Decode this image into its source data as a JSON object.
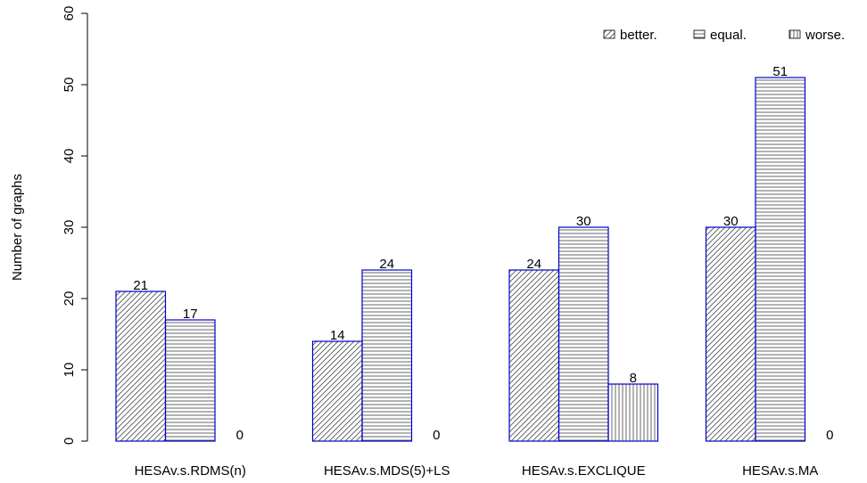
{
  "chart_data": {
    "type": "bar",
    "ylabel": "Number of graphs",
    "xlabel": "",
    "ylim": [
      0,
      60
    ],
    "yticks": [
      0,
      10,
      20,
      30,
      40,
      50,
      60
    ],
    "categories": [
      "HESAv.s.RDMS(n)",
      "HESAv.s.MDS(5)+LS",
      "HESAv.s.EXCLIQUE",
      "HESAv.s.MA"
    ],
    "series": [
      {
        "name": "better.",
        "values": [
          21,
          14,
          24,
          30
        ],
        "pattern": "diagonal"
      },
      {
        "name": "equal.",
        "values": [
          17,
          24,
          30,
          51
        ],
        "pattern": "horizontal"
      },
      {
        "name": "worse.",
        "values": [
          0,
          0,
          8,
          0
        ],
        "pattern": "vertical"
      }
    ],
    "legend": "top-right",
    "grid": false,
    "colors": {
      "bar_border": "#0000cc",
      "hatch": "#555555",
      "axis": "#000000"
    }
  }
}
